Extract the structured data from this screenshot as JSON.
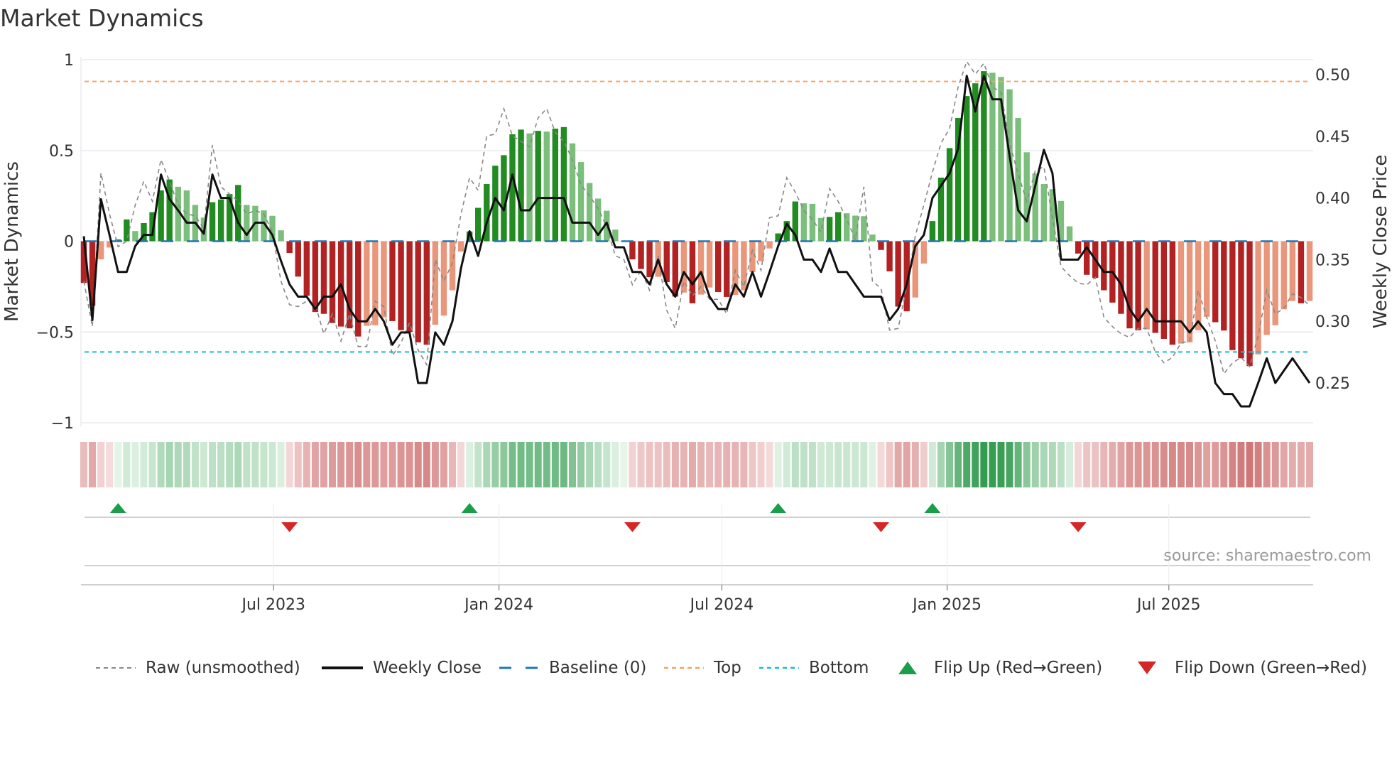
{
  "title": "Market Dynamics",
  "source": "source: sharemaestro.com",
  "colors": {
    "green_strong": "#228b22",
    "green_weak": "#7cbf7c",
    "red_strong": "#b22222",
    "red_weak": "#e9967a",
    "baseline": "#1f77b4",
    "top": "#f4a460",
    "bottom": "#17becf",
    "raw": "#888888",
    "close": "#111111",
    "flip_up": "#1a9e4a",
    "flip_down": "#d62728"
  },
  "chart_data": {
    "type": "bar",
    "title": "Market Dynamics",
    "ylabel": "Market Dynamics",
    "y2label": "Weekly Close Price",
    "ylim": [
      -1,
      1
    ],
    "y2lim": [
      0.22,
      0.52
    ],
    "yticks": [
      {
        "v": 1,
        "label": "1"
      },
      {
        "v": 0.5,
        "label": "0.5"
      },
      {
        "v": 0,
        "label": "0"
      },
      {
        "v": -0.5,
        "label": "−0.5"
      },
      {
        "v": -1,
        "label": "−1"
      }
    ],
    "y2ticks": [
      {
        "v": 0.5,
        "label": "0.50"
      },
      {
        "v": 0.45,
        "label": "0.45"
      },
      {
        "v": 0.4,
        "label": "0.40"
      },
      {
        "v": 0.35,
        "label": "0.35"
      },
      {
        "v": 0.3,
        "label": "0.30"
      },
      {
        "v": 0.25,
        "label": "0.25"
      }
    ],
    "xticks": [
      {
        "date": "2023-07-01",
        "label": "Jul 2023"
      },
      {
        "date": "2024-01-01",
        "label": "Jan 2024"
      },
      {
        "date": "2024-07-01",
        "label": "Jul 2024"
      },
      {
        "date": "2025-01-01",
        "label": "Jan 2025"
      },
      {
        "date": "2025-07-01",
        "label": "Jul 2025"
      }
    ],
    "start_date": "2023-01-27",
    "interval_days": 7,
    "top_level": 0.88,
    "bottom_level": -0.61,
    "baseline": 0,
    "dynamics": [
      -0.23,
      -0.355,
      -0.1,
      -0.035,
      0.01,
      0.12,
      0.056,
      0.1,
      0.16,
      0.28,
      0.34,
      0.3,
      0.28,
      0.2,
      0.13,
      0.215,
      0.23,
      0.26,
      0.31,
      0.2,
      0.195,
      0.17,
      0.14,
      0.06,
      -0.065,
      -0.195,
      -0.3,
      -0.39,
      -0.4,
      -0.45,
      -0.47,
      -0.48,
      -0.525,
      -0.466,
      -0.463,
      -0.42,
      -0.44,
      -0.49,
      -0.5,
      -0.557,
      -0.57,
      -0.46,
      -0.41,
      -0.27,
      -0.057,
      0.054,
      0.184,
      0.315,
      0.416,
      0.474,
      0.589,
      0.615,
      0.594,
      0.608,
      0.604,
      0.62,
      0.629,
      0.539,
      0.436,
      0.321,
      0.235,
      0.168,
      0.064,
      0.004,
      -0.1,
      -0.153,
      -0.198,
      -0.196,
      -0.225,
      -0.305,
      -0.283,
      -0.342,
      -0.294,
      -0.255,
      -0.28,
      -0.307,
      -0.296,
      -0.27,
      -0.17,
      -0.11,
      -0.04,
      0.043,
      0.111,
      0.219,
      0.209,
      0.206,
      0.128,
      0.134,
      0.16,
      0.154,
      0.141,
      0.138,
      0.037,
      -0.048,
      -0.166,
      -0.36,
      -0.386,
      -0.31,
      -0.123,
      0.111,
      0.35,
      0.513,
      0.679,
      0.8,
      0.87,
      0.937,
      0.928,
      0.905,
      0.837,
      0.679,
      0.49,
      0.373,
      0.315,
      0.287,
      0.222,
      0.082,
      -0.068,
      -0.185,
      -0.202,
      -0.27,
      -0.338,
      -0.4,
      -0.48,
      -0.49,
      -0.486,
      -0.505,
      -0.538,
      -0.57,
      -0.564,
      -0.557,
      -0.49,
      -0.416,
      -0.446,
      -0.492,
      -0.6,
      -0.645,
      -0.688,
      -0.623,
      -0.516,
      -0.463,
      -0.375,
      -0.329,
      -0.342,
      -0.329
    ],
    "raw": [
      -0.22,
      -0.47,
      0.376,
      0.15,
      -0.03,
      0.0,
      0.2,
      0.33,
      0.22,
      0.45,
      0.33,
      0.2,
      0.15,
      0.14,
      0.07,
      0.53,
      0.3,
      0.26,
      0.22,
      0.15,
      0.17,
      0.15,
      0.05,
      -0.22,
      -0.35,
      -0.36,
      -0.33,
      -0.35,
      -0.51,
      -0.4,
      -0.55,
      -0.4,
      -0.58,
      -0.58,
      -0.33,
      -0.36,
      -0.63,
      -0.56,
      -0.45,
      -0.6,
      -0.68,
      -0.1,
      -0.22,
      -0.12,
      0.15,
      0.35,
      0.28,
      0.58,
      0.59,
      0.73,
      0.58,
      0.55,
      0.52,
      0.68,
      0.73,
      0.6,
      0.55,
      0.45,
      0.31,
      0.25,
      0.18,
      0.08,
      -0.08,
      -0.1,
      -0.24,
      -0.16,
      -0.27,
      -0.08,
      -0.38,
      -0.48,
      -0.22,
      -0.3,
      -0.25,
      -0.32,
      -0.32,
      -0.4,
      -0.16,
      -0.25,
      -0.05,
      -0.16,
      0.13,
      0.14,
      0.35,
      0.27,
      0.17,
      0.12,
      0.05,
      0.29,
      0.22,
      0.12,
      0.01,
      0.3,
      -0.22,
      -0.26,
      -0.49,
      -0.48,
      -0.25,
      0.03,
      0.2,
      0.38,
      0.54,
      0.62,
      0.85,
      0.99,
      0.92,
      0.98,
      0.85,
      0.82,
      0.54,
      0.37,
      0.22,
      0.39,
      0.41,
      0.13,
      -0.14,
      -0.19,
      -0.23,
      -0.24,
      -0.2,
      -0.42,
      -0.47,
      -0.51,
      -0.53,
      -0.48,
      -0.48,
      -0.61,
      -0.67,
      -0.64,
      -0.56,
      -0.55,
      -0.27,
      -0.42,
      -0.55,
      -0.73,
      -0.67,
      -0.64,
      -0.69,
      -0.52,
      -0.27,
      -0.4,
      -0.37,
      -0.29,
      -0.31,
      -0.355
    ],
    "close": [
      0.369,
      0.301,
      0.399,
      0.37,
      0.34,
      0.34,
      0.361,
      0.37,
      0.37,
      0.419,
      0.399,
      0.39,
      0.38,
      0.38,
      0.371,
      0.419,
      0.4,
      0.4,
      0.38,
      0.37,
      0.38,
      0.38,
      0.37,
      0.349,
      0.33,
      0.32,
      0.32,
      0.31,
      0.32,
      0.32,
      0.33,
      0.31,
      0.3,
      0.3,
      0.31,
      0.3,
      0.281,
      0.291,
      0.291,
      0.25,
      0.25,
      0.291,
      0.281,
      0.3,
      0.343,
      0.373,
      0.353,
      0.38,
      0.4,
      0.39,
      0.419,
      0.39,
      0.39,
      0.4,
      0.4,
      0.4,
      0.4,
      0.38,
      0.38,
      0.38,
      0.37,
      0.38,
      0.36,
      0.36,
      0.34,
      0.34,
      0.33,
      0.35,
      0.33,
      0.32,
      0.34,
      0.33,
      0.34,
      0.32,
      0.31,
      0.31,
      0.33,
      0.32,
      0.34,
      0.32,
      0.34,
      0.361,
      0.379,
      0.37,
      0.35,
      0.35,
      0.34,
      0.359,
      0.34,
      0.34,
      0.33,
      0.32,
      0.32,
      0.32,
      0.301,
      0.31,
      0.33,
      0.361,
      0.37,
      0.4,
      0.41,
      0.42,
      0.44,
      0.499,
      0.47,
      0.499,
      0.48,
      0.48,
      0.434,
      0.39,
      0.381,
      0.41,
      0.439,
      0.42,
      0.35,
      0.35,
      0.35,
      0.36,
      0.35,
      0.34,
      0.34,
      0.33,
      0.31,
      0.3,
      0.31,
      0.3,
      0.3,
      0.3,
      0.3,
      0.291,
      0.3,
      0.291,
      0.25,
      0.241,
      0.241,
      0.231,
      0.231,
      0.25,
      0.27,
      0.25,
      0.26,
      0.27,
      0.26,
      0.25
    ],
    "flip_up_weeks": [
      5,
      46,
      82,
      100
    ],
    "flip_down_weeks": [
      25,
      65,
      94,
      117
    ],
    "legend": [
      {
        "key": "raw",
        "label": "Raw (unsmoothed)"
      },
      {
        "key": "close",
        "label": "Weekly Close"
      },
      {
        "key": "baseline",
        "label": "Baseline (0)"
      },
      {
        "key": "top",
        "label": "Top"
      },
      {
        "key": "bottom",
        "label": "Bottom"
      },
      {
        "key": "flip_up",
        "label": "Flip Up (Red→Green)"
      },
      {
        "key": "flip_down",
        "label": "Flip Down (Green→Red)"
      }
    ],
    "legend_position": "bottom"
  }
}
